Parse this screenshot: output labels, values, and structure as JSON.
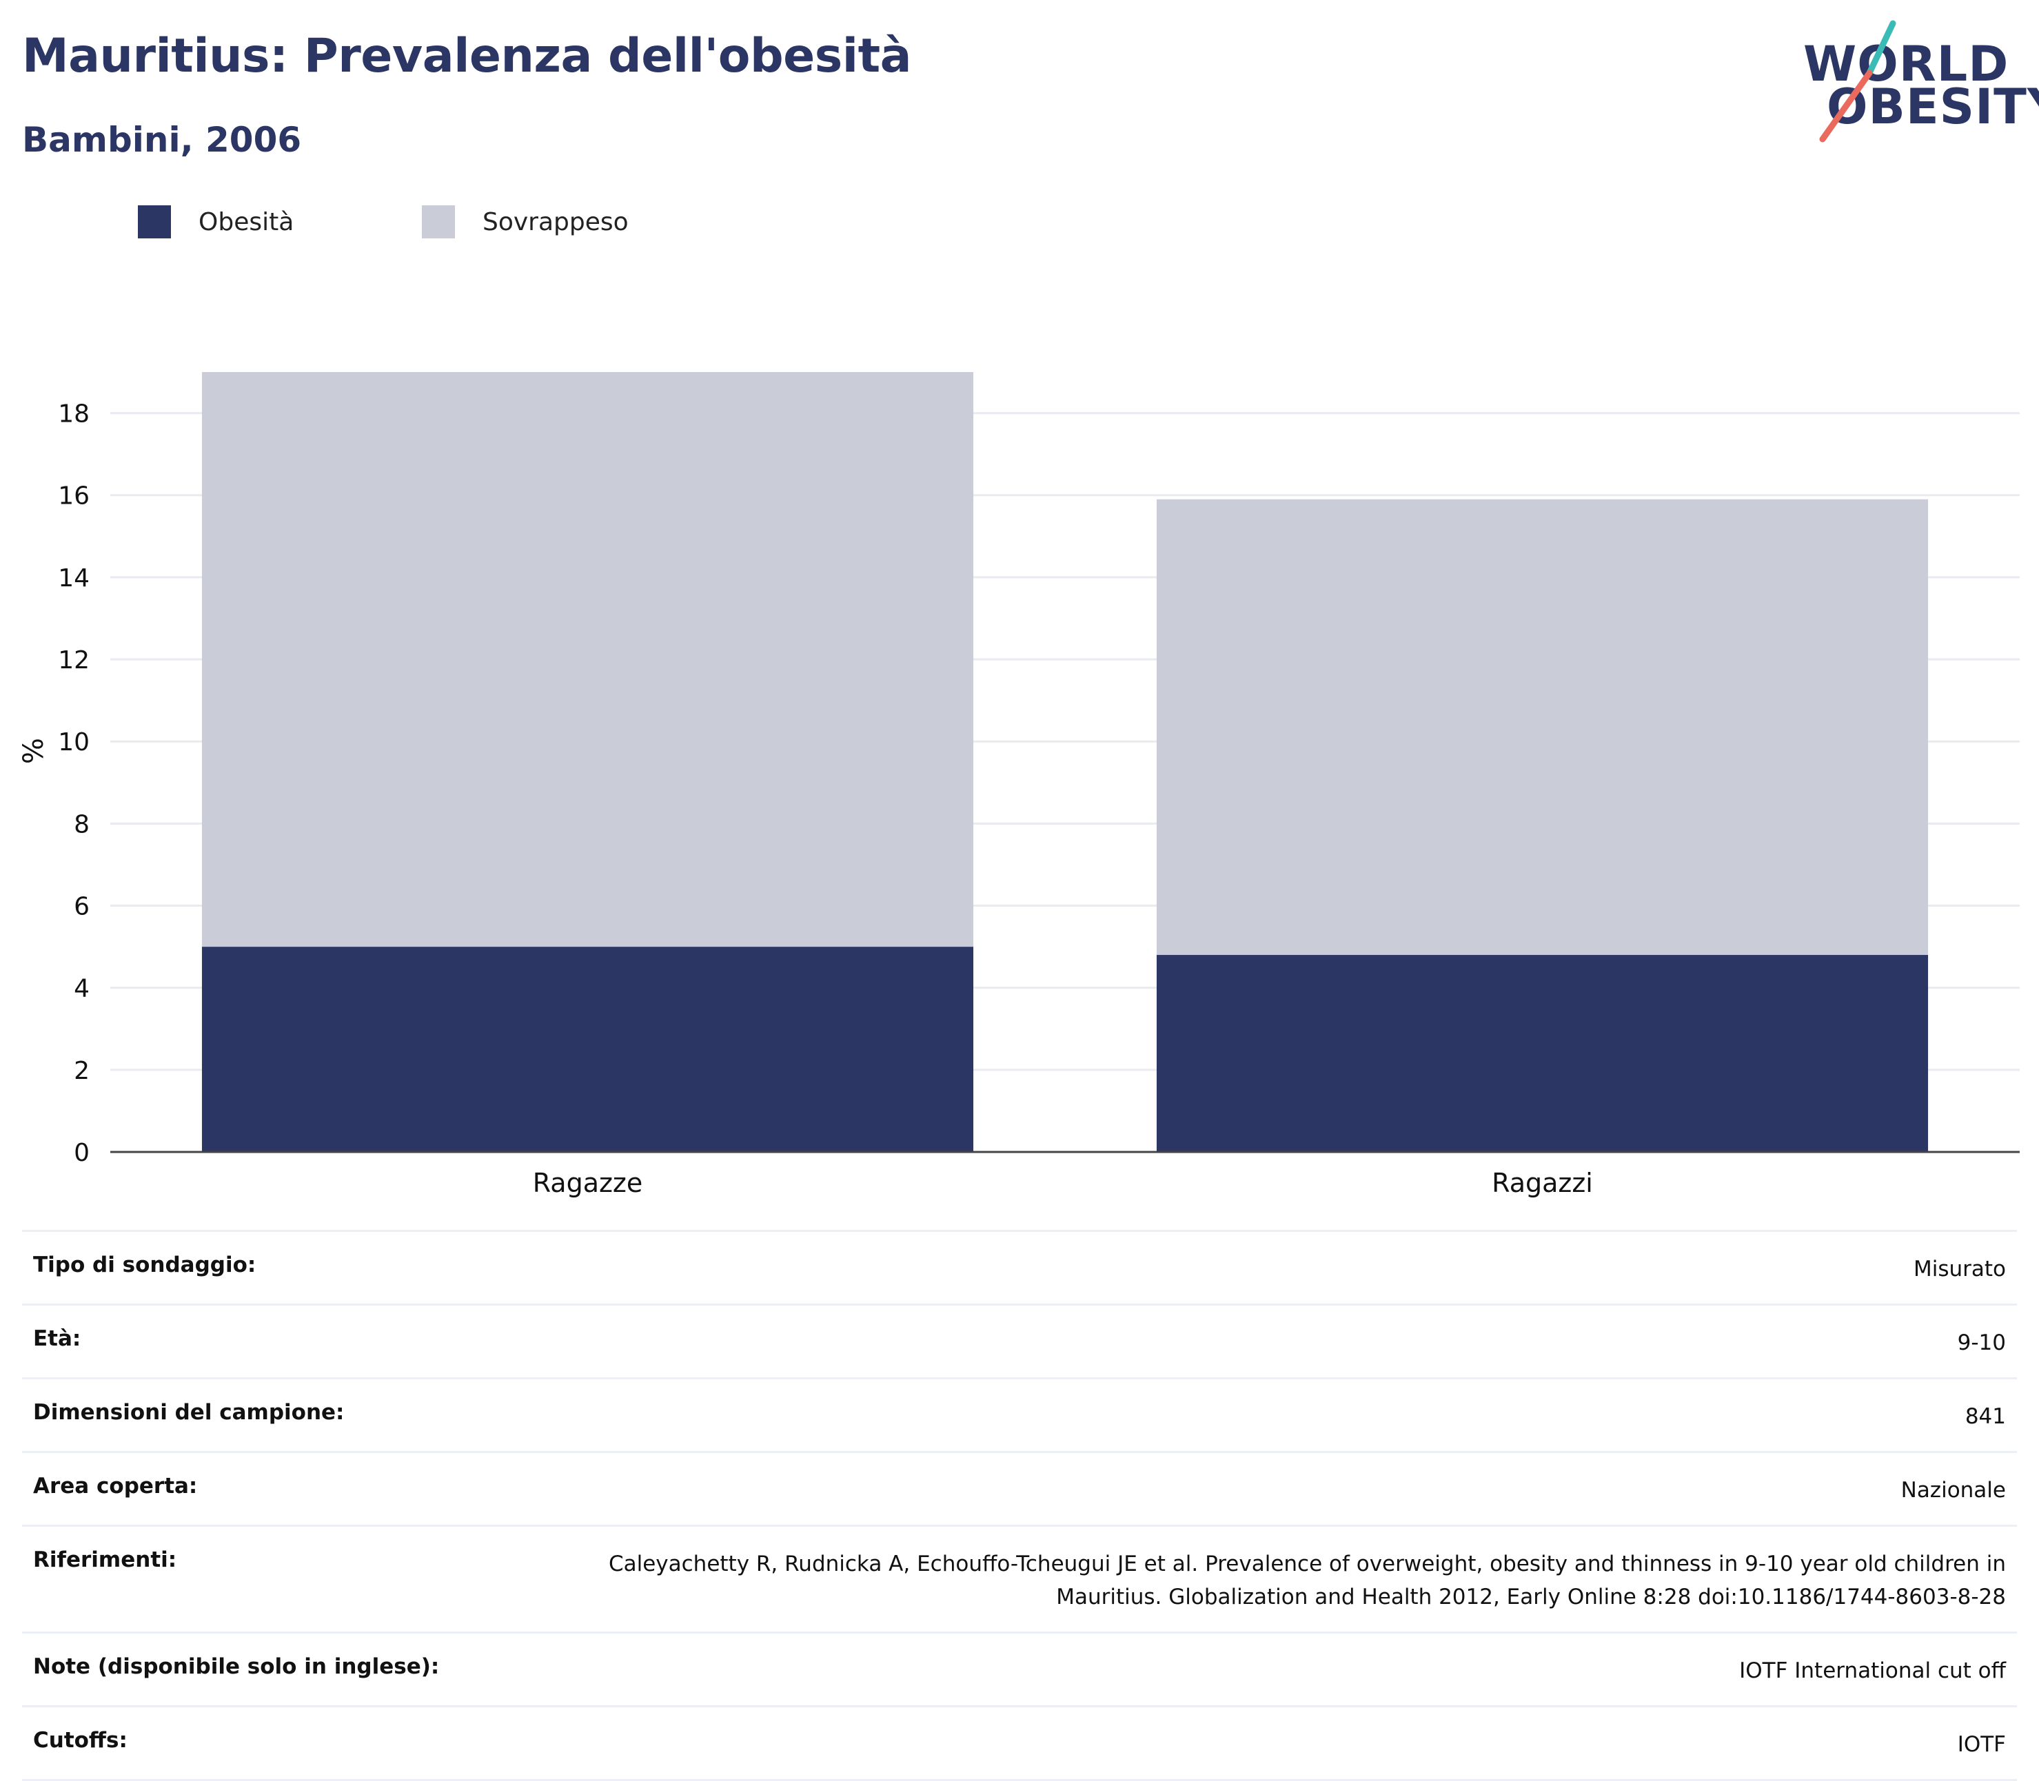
{
  "header": {
    "title": "Mauritius: Prevalenza dell'obesità",
    "subtitle": "Bambini, 2006"
  },
  "logo": {
    "line1": "WORLD",
    "line2": "OBESITY"
  },
  "colors": {
    "title": "#2b3664",
    "obesity": "#2b3664",
    "overweight": "#cacdd8",
    "grid": "#e9ebf0",
    "logo_slash_top": "#3bbbb6",
    "logo_slash_bottom": "#ea6a5d"
  },
  "legend": [
    {
      "label": "Obesità",
      "color": "#2b3664"
    },
    {
      "label": "Sovrappeso",
      "color": "#cacdd8"
    }
  ],
  "chart_data": {
    "type": "bar",
    "stacked": true,
    "categories": [
      "Ragazze",
      "Ragazzi"
    ],
    "series": [
      {
        "name": "Obesità",
        "values": [
          5.0,
          4.8
        ],
        "color": "#2b3664"
      },
      {
        "name": "Sovrappeso",
        "values": [
          14.0,
          11.1
        ],
        "color": "#cacdd8"
      }
    ],
    "ylabel": "%",
    "xlabel": "",
    "ylim": [
      0,
      19
    ],
    "yticks": [
      0,
      2,
      4,
      6,
      8,
      10,
      12,
      14,
      16,
      18
    ],
    "grid": true,
    "legend_position": "top-left"
  },
  "details": [
    {
      "key": "Tipo di sondaggio:",
      "value": "Misurato"
    },
    {
      "key": "Età:",
      "value": "9-10"
    },
    {
      "key": "Dimensioni del campione:",
      "value": "841"
    },
    {
      "key": "Area coperta:",
      "value": "Nazionale"
    },
    {
      "key": "Riferimenti:",
      "value": "Caleyachetty R, Rudnicka A, Echouffo-Tcheugui JE et al. Prevalence of overweight, obesity and thinness in 9-10 year old children in Mauritius. Globalization and Health 2012, Early Online 8:28 doi:10.1186/1744-8603-8-28"
    },
    {
      "key": "Note (disponibile solo in inglese):",
      "value": "IOTF International cut off"
    },
    {
      "key": "Cutoffs:",
      "value": "IOTF"
    }
  ]
}
